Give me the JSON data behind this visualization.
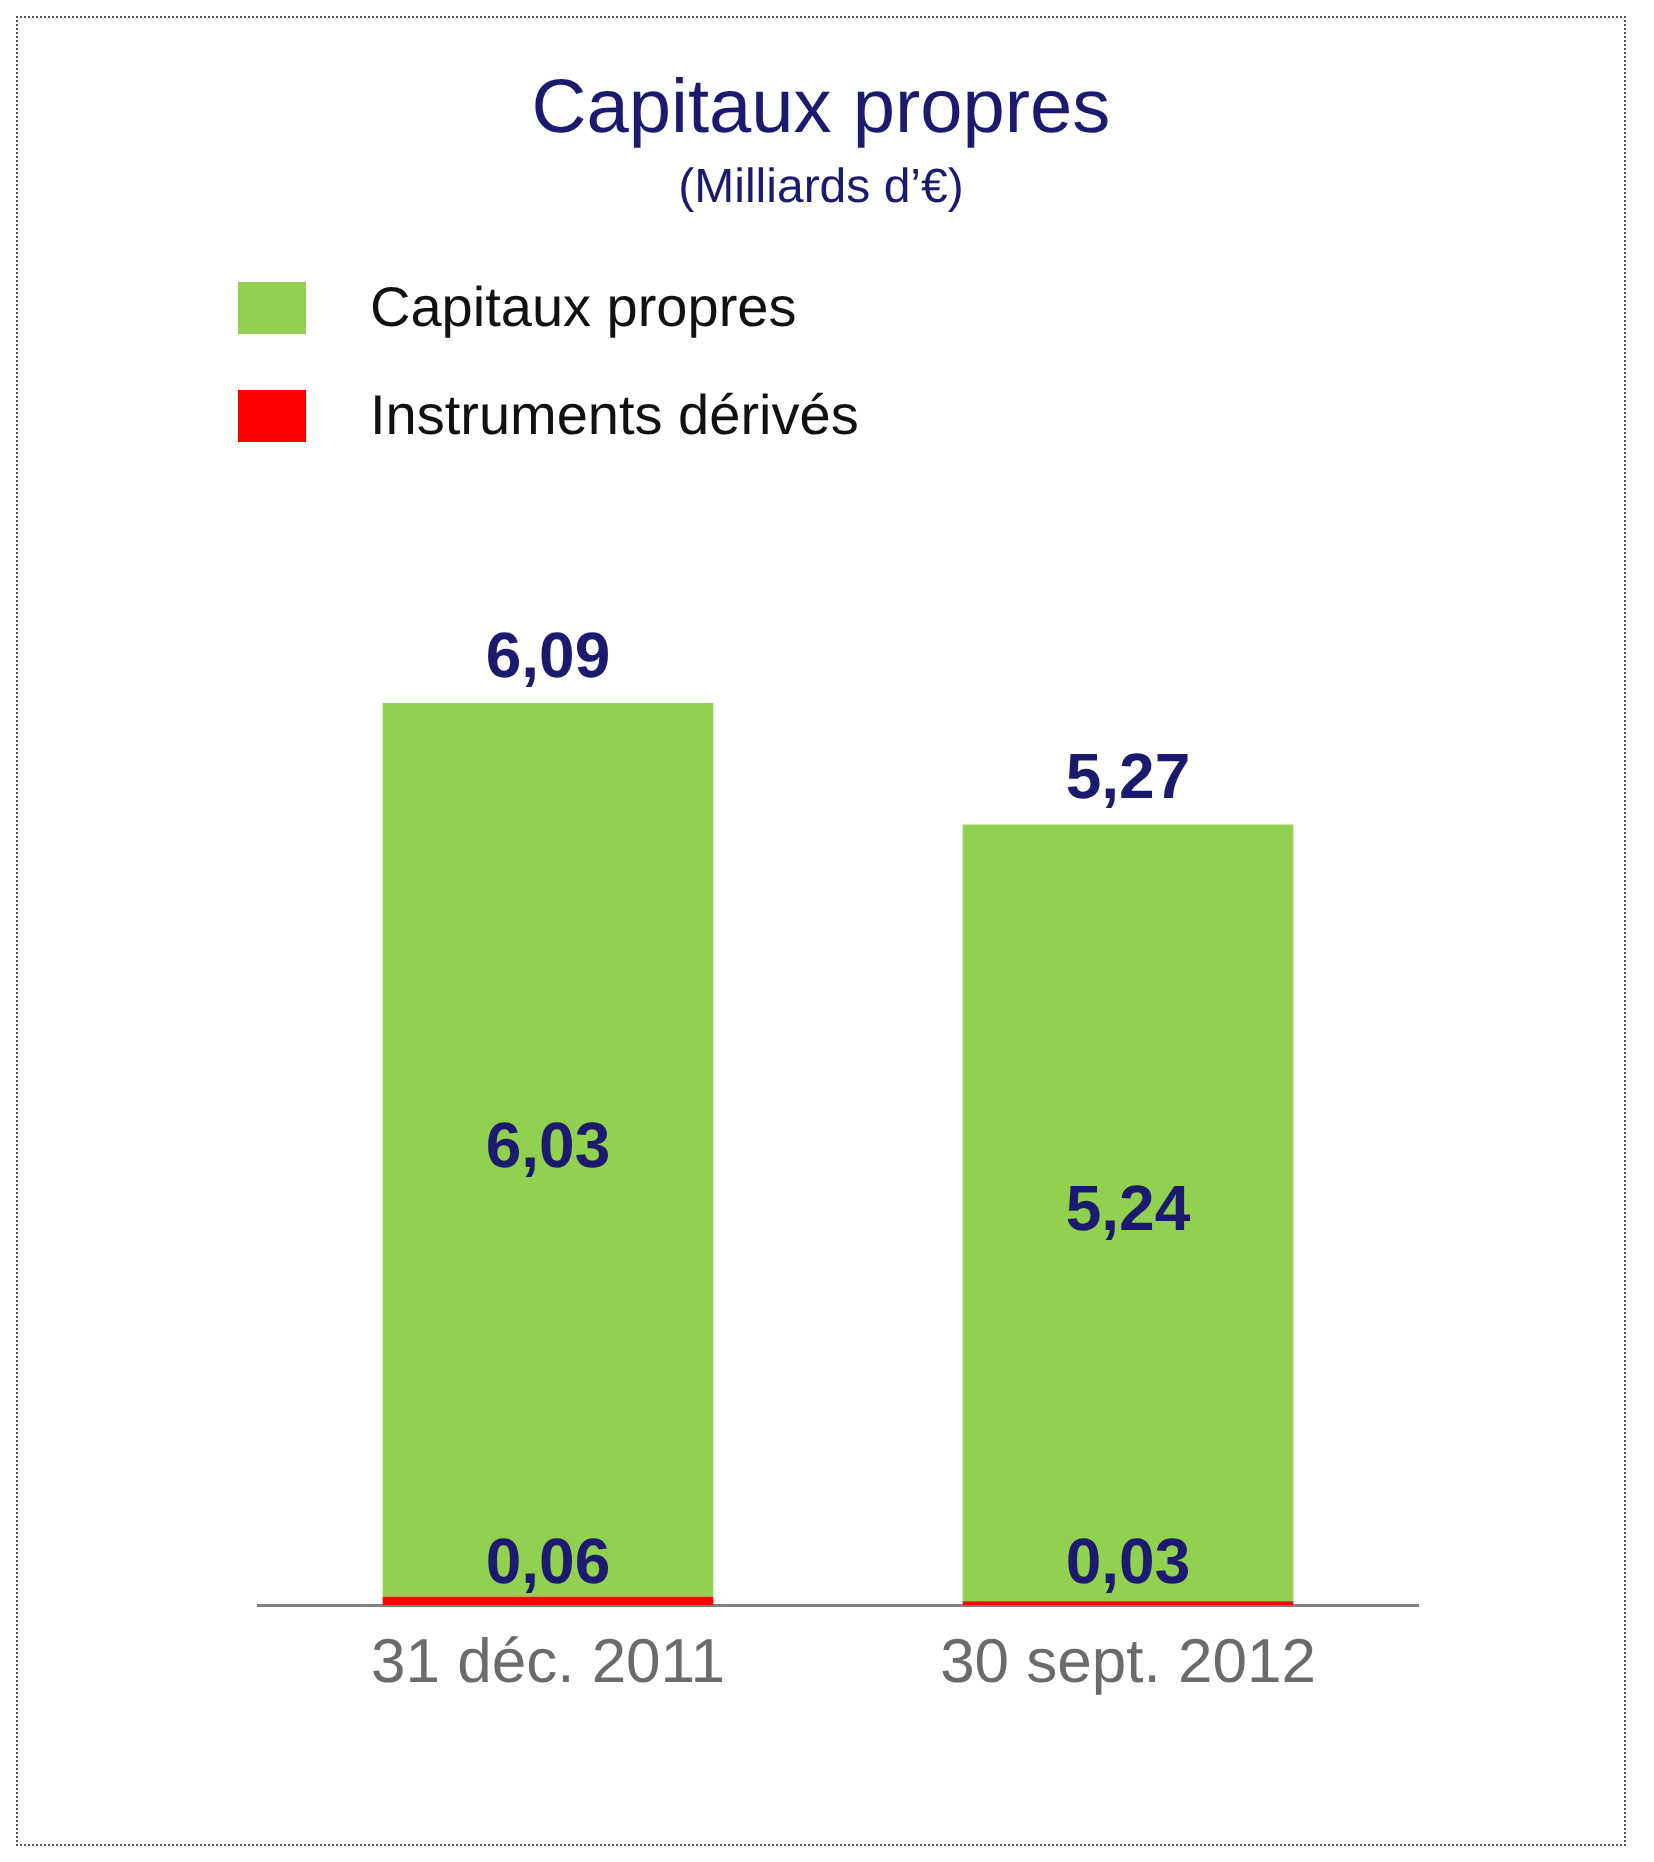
{
  "chart_data": {
    "type": "bar",
    "title": "Capitaux propres",
    "subtitle": "(Milliards d’€)",
    "categories": [
      "31 déc. 2011",
      "30 sept. 2012"
    ],
    "stacked": true,
    "legend": "top left",
    "totals": [
      "6,09",
      "5,27"
    ],
    "series": [
      {
        "name": "Instruments dérivés",
        "color": "#ff0000",
        "values": [
          0.06,
          0.03
        ],
        "value_labels": [
          "0,06",
          "0,03"
        ]
      },
      {
        "name": "Capitaux propres",
        "color": "#92d050",
        "values": [
          6.03,
          5.24
        ],
        "value_labels": [
          "6,03",
          "5,24"
        ]
      }
    ]
  }
}
